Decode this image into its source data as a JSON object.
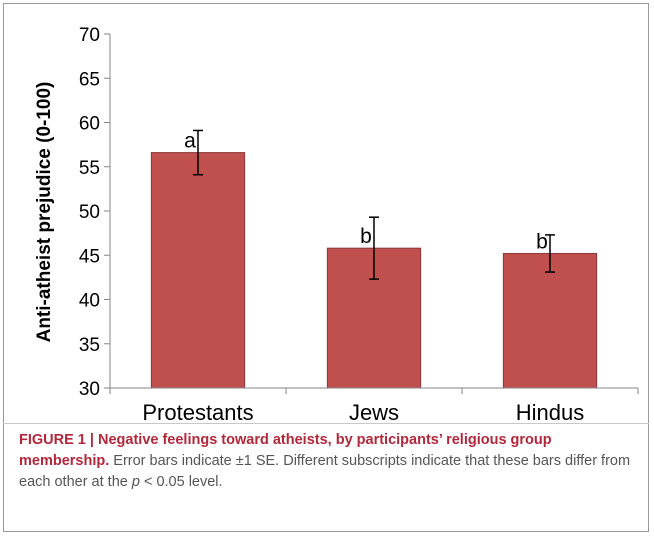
{
  "chart_data": {
    "type": "bar",
    "ylabel": "Anti-atheist prejudice (0-100)",
    "xlabel": "",
    "ylim": [
      30,
      70
    ],
    "yticks": [
      30,
      35,
      40,
      45,
      50,
      55,
      60,
      65,
      70
    ],
    "categories": [
      "Protestants",
      "Jews",
      "Hindus"
    ],
    "values": [
      56.6,
      45.8,
      45.2
    ],
    "error_low": [
      54.1,
      42.3,
      43.1
    ],
    "error_high": [
      59.1,
      49.3,
      47.3
    ],
    "annotations": [
      "a",
      "b",
      "b"
    ],
    "bar_color": "#c0504d",
    "bar_edge_color": "#8c3836",
    "grid": false,
    "legend": "none"
  },
  "caption": {
    "label": "FIGURE 1 | ",
    "title": "Negative feelings toward atheists, by participants’ religious group membership.",
    "text_1": " Error bars indicate ±1 SE. Different subscripts indicate that these bars differ from each other at the ",
    "p_symbol": "p",
    "text_2": " < 0.05 level."
  }
}
